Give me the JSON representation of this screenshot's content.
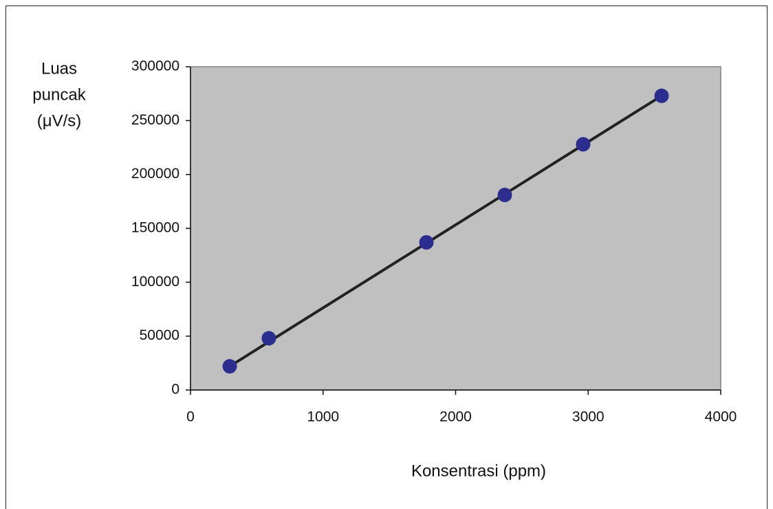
{
  "chart_data": {
    "type": "scatter",
    "xlabel": "Konsentrasi (ppm)",
    "ylabel": [
      "Luas",
      "puncak",
      "(μV/s)"
    ],
    "x": [
      296,
      591,
      1780,
      2371,
      2962,
      3554
    ],
    "series": [
      {
        "color": "#2b2e8f",
        "values": [
          22000,
          48000,
          137000,
          181000,
          228000,
          273000
        ]
      }
    ],
    "trendline": {
      "color": "#222222",
      "x": [
        296,
        3554
      ],
      "values": [
        22000,
        273000
      ]
    },
    "xlim": [
      0,
      4000
    ],
    "xticks": [
      0,
      1000,
      2000,
      3000,
      4000
    ],
    "ylim": [
      0,
      300000
    ],
    "yticks": [
      0,
      50000,
      100000,
      150000,
      200000,
      250000,
      300000
    ],
    "plot_background": "#c0c0c0"
  }
}
